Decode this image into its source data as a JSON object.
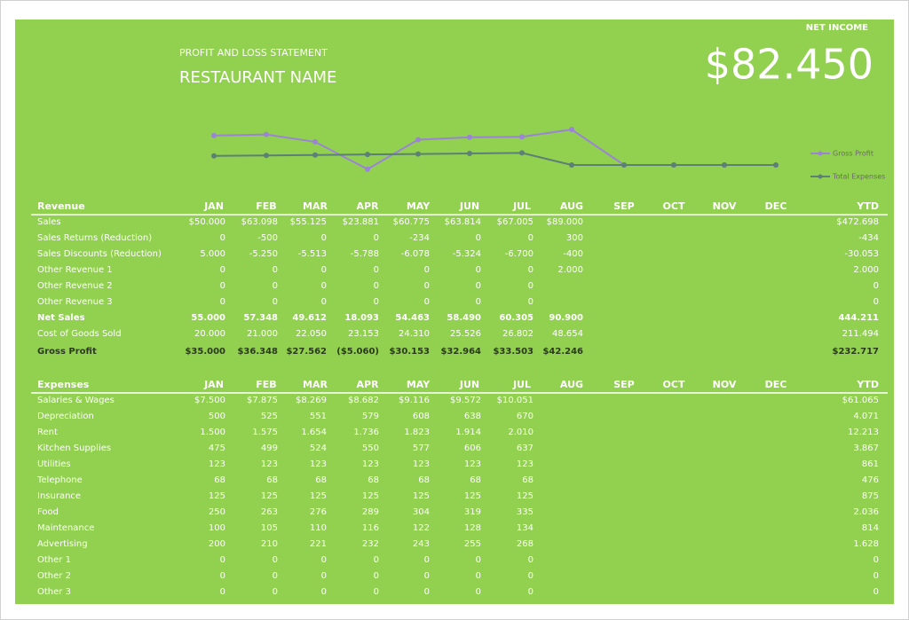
{
  "header": {
    "subtitle": "PROFIT AND LOSS STATEMENT",
    "title": "RESTAURANT NAME",
    "net_income_label": "NET INCOME",
    "net_income": "$82.450"
  },
  "chart_data": {
    "type": "line",
    "legend": "right",
    "series": [
      {
        "name": "Gross Profit",
        "color": "#9b84d6",
        "values": [
          35000,
          36348,
          27562,
          -5060,
          30153,
          32964,
          33503,
          42246,
          0,
          0,
          0,
          0
        ]
      },
      {
        "name": "Total Expenses",
        "color": "#5c7f76",
        "values": [
          10841,
          11368,
          11921,
          12500,
          13109,
          13748,
          14421,
          0,
          0,
          0,
          0,
          0
        ]
      }
    ]
  },
  "revenue": {
    "columns": [
      "Revenue",
      "JAN",
      "FEB",
      "MAR",
      "APR",
      "MAY",
      "JUN",
      "JUL",
      "AUG",
      "SEP",
      "OCT",
      "NOV",
      "DEC",
      "YTD"
    ],
    "rows": [
      [
        "Sales",
        "$50.000",
        "$63.098",
        "$55.125",
        "$23.881",
        "$60.775",
        "$63.814",
        "$67.005",
        "$89.000",
        null,
        null,
        null,
        null,
        "$472.698"
      ],
      [
        "Sales Returns (Reduction)",
        "0",
        "-500",
        "0",
        "0",
        "-234",
        "0",
        "0",
        "300",
        null,
        null,
        null,
        null,
        "-434"
      ],
      [
        "Sales Discounts (Reduction)",
        "5.000",
        "-5.250",
        "-5.513",
        "-5.788",
        "-6.078",
        "-5.324",
        "-6.700",
        "-400",
        null,
        null,
        null,
        null,
        "-30.053"
      ],
      [
        "Other Revenue 1",
        "0",
        "0",
        "0",
        "0",
        "0",
        "0",
        "0",
        "2.000",
        null,
        null,
        null,
        null,
        "2.000"
      ],
      [
        "Other Revenue 2",
        "0",
        "0",
        "0",
        "0",
        "0",
        "0",
        "0",
        null,
        null,
        null,
        null,
        null,
        "0"
      ],
      [
        "Other Revenue 3",
        "0",
        "0",
        "0",
        "0",
        "0",
        "0",
        "0",
        null,
        null,
        null,
        null,
        null,
        "0"
      ],
      [
        "Net Sales",
        "55.000",
        "57.348",
        "49.612",
        "18.093",
        "54.463",
        "58.490",
        "60.305",
        "90.900",
        null,
        null,
        null,
        null,
        "444.211"
      ],
      [
        "Cost of Goods Sold",
        "20.000",
        "21.000",
        "22.050",
        "23.153",
        "24.310",
        "25.526",
        "26.802",
        "48.654",
        null,
        null,
        null,
        null,
        "211.494"
      ],
      [
        "Gross Profit",
        "$35.000",
        "$36.348",
        "$27.562",
        "($5.060)",
        "$30.153",
        "$32.964",
        "$33.503",
        "$42.246",
        null,
        null,
        null,
        null,
        "$232.717"
      ]
    ]
  },
  "expenses": {
    "columns": [
      "Expenses",
      "JAN",
      "FEB",
      "MAR",
      "APR",
      "MAY",
      "JUN",
      "JUL",
      "AUG",
      "SEP",
      "OCT",
      "NOV",
      "DEC",
      "YTD"
    ],
    "rows": [
      [
        "Salaries & Wages",
        "$7.500",
        "$7.875",
        "$8.269",
        "$8.682",
        "$9.116",
        "$9.572",
        "$10.051",
        null,
        null,
        null,
        null,
        null,
        "$61.065"
      ],
      [
        "Depreciation",
        "500",
        "525",
        "551",
        "579",
        "608",
        "638",
        "670",
        null,
        null,
        null,
        null,
        null,
        "4.071"
      ],
      [
        "Rent",
        "1.500",
        "1.575",
        "1.654",
        "1.736",
        "1.823",
        "1.914",
        "2.010",
        null,
        null,
        null,
        null,
        null,
        "12.213"
      ],
      [
        "Kitchen Supplies",
        "475",
        "499",
        "524",
        "550",
        "577",
        "606",
        "637",
        null,
        null,
        null,
        null,
        null,
        "3.867"
      ],
      [
        "Utilities",
        "123",
        "123",
        "123",
        "123",
        "123",
        "123",
        "123",
        null,
        null,
        null,
        null,
        null,
        "861"
      ],
      [
        "Telephone",
        "68",
        "68",
        "68",
        "68",
        "68",
        "68",
        "68",
        null,
        null,
        null,
        null,
        null,
        "476"
      ],
      [
        "Insurance",
        "125",
        "125",
        "125",
        "125",
        "125",
        "125",
        "125",
        null,
        null,
        null,
        null,
        null,
        "875"
      ],
      [
        "Food",
        "250",
        "263",
        "276",
        "289",
        "304",
        "319",
        "335",
        null,
        null,
        null,
        null,
        null,
        "2.036"
      ],
      [
        "Maintenance",
        "100",
        "105",
        "110",
        "116",
        "122",
        "128",
        "134",
        null,
        null,
        null,
        null,
        null,
        "814"
      ],
      [
        "Advertising",
        "200",
        "210",
        "221",
        "232",
        "243",
        "255",
        "268",
        null,
        null,
        null,
        null,
        null,
        "1.628"
      ],
      [
        "Other 1",
        "0",
        "0",
        "0",
        "0",
        "0",
        "0",
        "0",
        null,
        null,
        null,
        null,
        null,
        "0"
      ],
      [
        "Other 2",
        "0",
        "0",
        "0",
        "0",
        "0",
        "0",
        "0",
        null,
        null,
        null,
        null,
        null,
        "0"
      ],
      [
        "Other 3",
        "0",
        "0",
        "0",
        "0",
        "0",
        "0",
        "0",
        null,
        null,
        null,
        null,
        null,
        "0"
      ]
    ]
  }
}
